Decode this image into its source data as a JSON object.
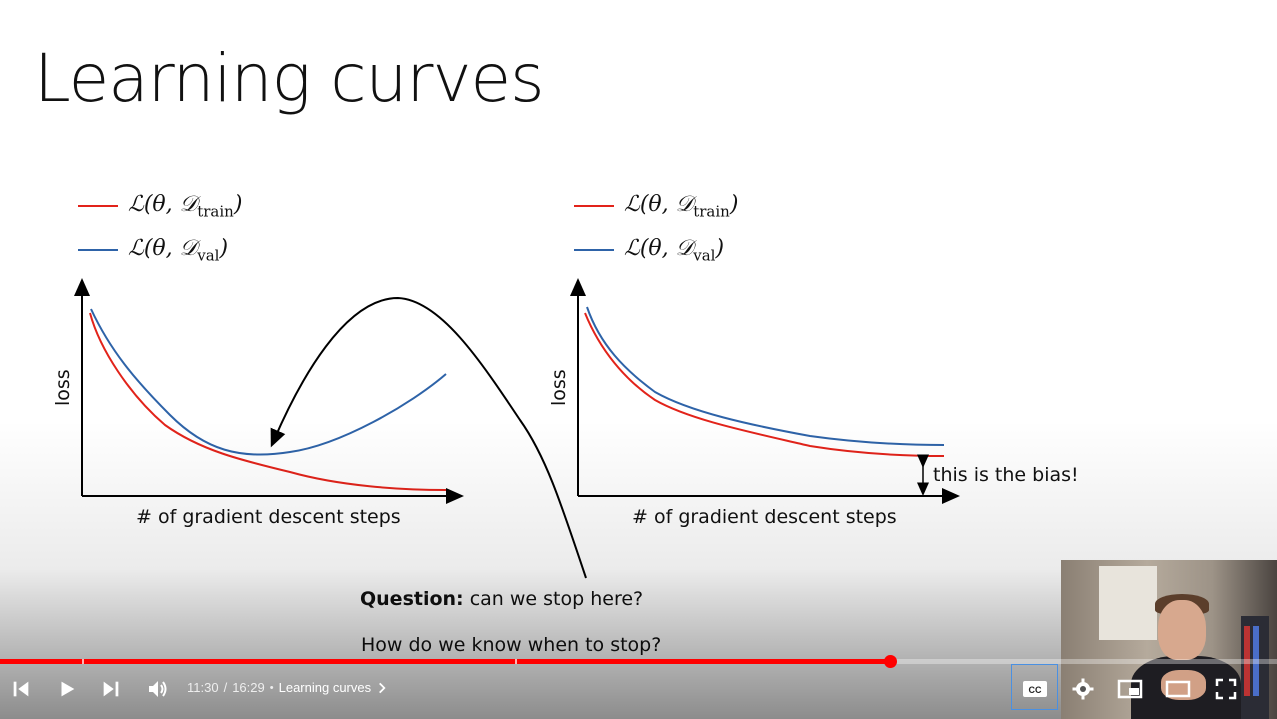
{
  "slide": {
    "title": "Learning curves",
    "left_plot": {
      "legend": [
        {
          "color": "#e2231a",
          "label": "ℒ(θ, 𝒟",
          "sub": "train",
          "close": ")"
        },
        {
          "color": "#2e63a8",
          "label": "ℒ(θ, 𝒟",
          "sub": "val",
          "close": ")"
        }
      ],
      "ylabel": "loss",
      "xlabel": "# of gradient descent steps"
    },
    "right_plot": {
      "legend": [
        {
          "color": "#e2231a",
          "label": "ℒ(θ, 𝒟",
          "sub": "train",
          "close": ")"
        },
        {
          "color": "#2e63a8",
          "label": "ℒ(θ, 𝒟",
          "sub": "val",
          "close": ")"
        }
      ],
      "ylabel": "loss",
      "xlabel": "# of gradient descent steps",
      "bias_label": "this is the bias!"
    },
    "question_bold": "Question:",
    "question_rest": " can we stop here?",
    "question2": "How do we know when to stop?"
  },
  "player": {
    "current_time": "11:30",
    "duration": "16:29",
    "chapter": "Learning curves",
    "progress_fraction": 0.6973,
    "buffered_fraction": 0.6973,
    "chapter_marks": [
      0.064,
      0.403
    ],
    "icons": {
      "prev": "skip-previous-icon",
      "play": "play-icon",
      "next": "skip-next-icon",
      "volume": "volume-icon",
      "cc": "closed-captions-icon",
      "settings": "settings-gear-icon",
      "miniplayer": "miniplayer-icon",
      "theater": "theater-mode-icon",
      "fullscreen": "fullscreen-icon"
    },
    "accent_color": "#ff0000"
  }
}
